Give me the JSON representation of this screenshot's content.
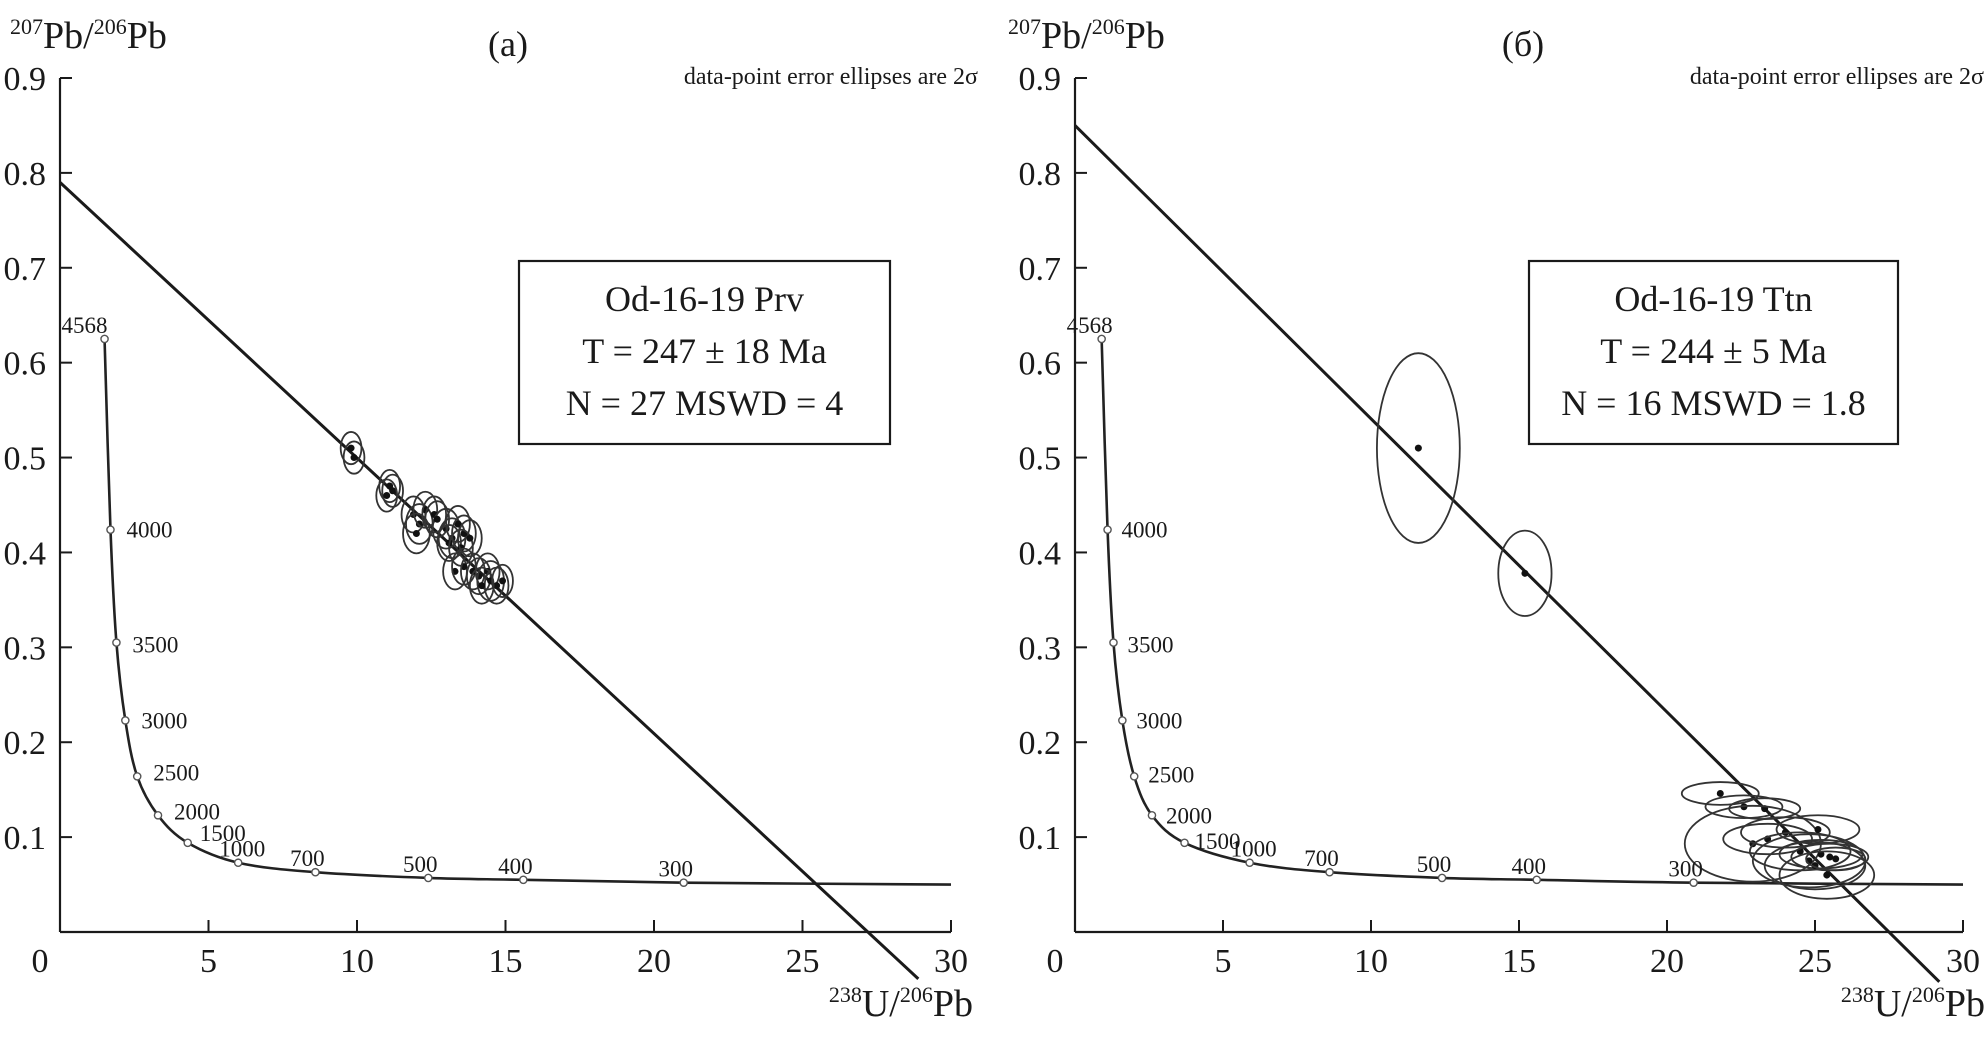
{
  "chart_data": [
    {
      "type": "scatter",
      "panel_label": "(a)",
      "note": "data-point error ellipses are 2σ",
      "xlabel": {
        "sup": "238",
        "main": "U/",
        "sup2": "206",
        "tail": "Pb"
      },
      "ylabel": {
        "sup": "207",
        "main": "Pb/",
        "sup2": "206",
        "tail": "Pb"
      },
      "xlim": [
        0,
        30
      ],
      "ylim": [
        0,
        0.9
      ],
      "x_ticks": [
        "0",
        "5",
        "10",
        "15",
        "20",
        "25",
        "30"
      ],
      "y_ticks": [
        "0.1",
        "0.2",
        "0.3",
        "0.4",
        "0.5",
        "0.6",
        "0.7",
        "0.8",
        "0.9"
      ],
      "annotation_box": [
        "Od-16-19 Prv",
        "T = 247 ± 18 Ma",
        "N = 27 MSWD = 4"
      ],
      "concordia_ages": [
        {
          "label": "4568",
          "x": 1.5,
          "y": 0.625
        },
        {
          "label": "4000",
          "x": 1.7,
          "y": 0.424
        },
        {
          "label": "3500",
          "x": 1.9,
          "y": 0.305
        },
        {
          "label": "3000",
          "x": 2.2,
          "y": 0.223
        },
        {
          "label": "2500",
          "x": 2.6,
          "y": 0.164
        },
        {
          "label": "2000",
          "x": 3.3,
          "y": 0.123
        },
        {
          "label": "1500",
          "x": 4.3,
          "y": 0.094
        },
        {
          "label": "1000",
          "x": 6.0,
          "y": 0.073
        },
        {
          "label": "700",
          "x": 8.6,
          "y": 0.063
        },
        {
          "label": "500",
          "x": 12.4,
          "y": 0.057
        },
        {
          "label": "400",
          "x": 15.6,
          "y": 0.055
        },
        {
          "label": "300",
          "x": 21.0,
          "y": 0.052
        }
      ],
      "discordia": {
        "y_intercept": 0.79,
        "x_intercept": 27.2
      },
      "points": [
        {
          "x": 9.8,
          "y": 0.51,
          "sx": 0.35,
          "sy": 0.017
        },
        {
          "x": 9.9,
          "y": 0.5,
          "sx": 0.35,
          "sy": 0.017
        },
        {
          "x": 11.1,
          "y": 0.47,
          "sx": 0.35,
          "sy": 0.017
        },
        {
          "x": 11.2,
          "y": 0.465,
          "sx": 0.35,
          "sy": 0.017
        },
        {
          "x": 11.0,
          "y": 0.46,
          "sx": 0.35,
          "sy": 0.017
        },
        {
          "x": 11.9,
          "y": 0.44,
          "sx": 0.4,
          "sy": 0.019
        },
        {
          "x": 12.1,
          "y": 0.43,
          "sx": 0.45,
          "sy": 0.021
        },
        {
          "x": 12.3,
          "y": 0.445,
          "sx": 0.4,
          "sy": 0.019
        },
        {
          "x": 12.6,
          "y": 0.44,
          "sx": 0.4,
          "sy": 0.019
        },
        {
          "x": 12.0,
          "y": 0.42,
          "sx": 0.45,
          "sy": 0.021
        },
        {
          "x": 13.0,
          "y": 0.425,
          "sx": 0.45,
          "sy": 0.021
        },
        {
          "x": 13.2,
          "y": 0.415,
          "sx": 0.45,
          "sy": 0.021
        },
        {
          "x": 13.4,
          "y": 0.43,
          "sx": 0.4,
          "sy": 0.019
        },
        {
          "x": 13.6,
          "y": 0.42,
          "sx": 0.4,
          "sy": 0.019
        },
        {
          "x": 13.1,
          "y": 0.41,
          "sx": 0.4,
          "sy": 0.019
        },
        {
          "x": 13.5,
          "y": 0.405,
          "sx": 0.4,
          "sy": 0.019
        },
        {
          "x": 13.3,
          "y": 0.38,
          "sx": 0.4,
          "sy": 0.019
        },
        {
          "x": 13.6,
          "y": 0.385,
          "sx": 0.4,
          "sy": 0.019
        },
        {
          "x": 13.9,
          "y": 0.38,
          "sx": 0.4,
          "sy": 0.019
        },
        {
          "x": 14.1,
          "y": 0.375,
          "sx": 0.4,
          "sy": 0.019
        },
        {
          "x": 14.4,
          "y": 0.38,
          "sx": 0.4,
          "sy": 0.019
        },
        {
          "x": 14.5,
          "y": 0.37,
          "sx": 0.45,
          "sy": 0.021
        },
        {
          "x": 14.7,
          "y": 0.365,
          "sx": 0.4,
          "sy": 0.019
        },
        {
          "x": 14.2,
          "y": 0.365,
          "sx": 0.4,
          "sy": 0.019
        },
        {
          "x": 14.9,
          "y": 0.37,
          "sx": 0.35,
          "sy": 0.017
        },
        {
          "x": 12.7,
          "y": 0.435,
          "sx": 0.4,
          "sy": 0.019
        },
        {
          "x": 13.8,
          "y": 0.415,
          "sx": 0.4,
          "sy": 0.019
        }
      ]
    },
    {
      "type": "scatter",
      "panel_label": "(б)",
      "note": "data-point error ellipses are 2σ",
      "xlabel": {
        "sup": "238",
        "main": "U/",
        "sup2": "206",
        "tail": "Pb"
      },
      "ylabel": {
        "sup": "207",
        "main": "Pb/",
        "sup2": "206",
        "tail": "Pb"
      },
      "xlim": [
        0,
        30
      ],
      "ylim": [
        0,
        0.9
      ],
      "x_ticks": [
        "0",
        "5",
        "10",
        "15",
        "20",
        "25",
        "30"
      ],
      "y_ticks": [
        "0.1",
        "0.2",
        "0.3",
        "0.4",
        "0.5",
        "0.6",
        "0.7",
        "0.8",
        "0.9"
      ],
      "annotation_box": [
        "Od-16-19 Ttn",
        "T = 244 ± 5 Ma",
        "N = 16 MSWD = 1.8"
      ],
      "concordia_ages": [
        {
          "label": "4568",
          "x": 0.9,
          "y": 0.625
        },
        {
          "label": "4000",
          "x": 1.1,
          "y": 0.424
        },
        {
          "label": "3500",
          "x": 1.3,
          "y": 0.305
        },
        {
          "label": "3000",
          "x": 1.6,
          "y": 0.223
        },
        {
          "label": "2500",
          "x": 2.0,
          "y": 0.164
        },
        {
          "label": "2000",
          "x": 2.6,
          "y": 0.123
        },
        {
          "label": "1500",
          "x": 3.7,
          "y": 0.094
        },
        {
          "label": "1000",
          "x": 5.9,
          "y": 0.073
        },
        {
          "label": "700",
          "x": 8.6,
          "y": 0.063
        },
        {
          "label": "500",
          "x": 12.4,
          "y": 0.057
        },
        {
          "label": "400",
          "x": 15.6,
          "y": 0.055
        },
        {
          "label": "300",
          "x": 20.9,
          "y": 0.052
        }
      ],
      "discordia": {
        "y_intercept": 0.85,
        "x_intercept": 27.5
      },
      "points": [
        {
          "x": 11.6,
          "y": 0.51,
          "sx": 1.4,
          "sy": 0.1
        },
        {
          "x": 15.2,
          "y": 0.378,
          "sx": 0.9,
          "sy": 0.045
        },
        {
          "x": 21.8,
          "y": 0.146,
          "sx": 1.3,
          "sy": 0.012
        },
        {
          "x": 22.6,
          "y": 0.132,
          "sx": 1.3,
          "sy": 0.012
        },
        {
          "x": 23.3,
          "y": 0.13,
          "sx": 1.2,
          "sy": 0.011
        },
        {
          "x": 23.4,
          "y": 0.098,
          "sx": 1.5,
          "sy": 0.016
        },
        {
          "x": 22.9,
          "y": 0.093,
          "sx": 2.3,
          "sy": 0.04
        },
        {
          "x": 24.0,
          "y": 0.105,
          "sx": 1.5,
          "sy": 0.016
        },
        {
          "x": 24.5,
          "y": 0.085,
          "sx": 1.7,
          "sy": 0.02
        },
        {
          "x": 25.1,
          "y": 0.108,
          "sx": 1.4,
          "sy": 0.015
        },
        {
          "x": 24.8,
          "y": 0.075,
          "sx": 1.9,
          "sy": 0.028
        },
        {
          "x": 25.2,
          "y": 0.082,
          "sx": 1.4,
          "sy": 0.015
        },
        {
          "x": 25.5,
          "y": 0.079,
          "sx": 1.3,
          "sy": 0.014
        },
        {
          "x": 25.0,
          "y": 0.07,
          "sx": 1.7,
          "sy": 0.025
        },
        {
          "x": 25.4,
          "y": 0.06,
          "sx": 1.6,
          "sy": 0.025
        },
        {
          "x": 25.7,
          "y": 0.077,
          "sx": 1.0,
          "sy": 0.012
        }
      ]
    }
  ]
}
